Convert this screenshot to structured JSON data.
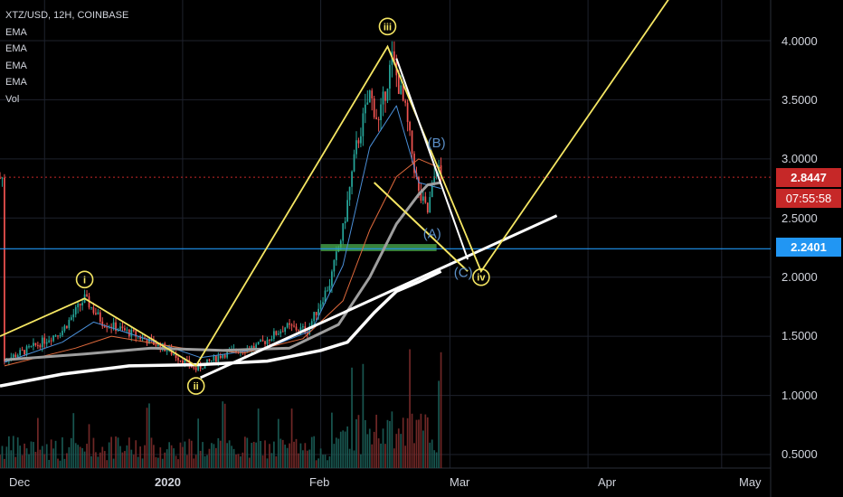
{
  "header": {
    "title": "XTZ/USD, 12H, COINBASE",
    "indicators": [
      "EMA",
      "EMA",
      "EMA",
      "EMA",
      "Vol"
    ]
  },
  "price_axis": {
    "ticks": [
      "4.0000",
      "3.5000",
      "3.0000",
      "2.5000",
      "2.0000",
      "1.5000",
      "1.0000",
      "0.5000"
    ]
  },
  "time_axis": {
    "ticks": [
      "Dec",
      "2020",
      "Feb",
      "Mar",
      "Apr",
      "May"
    ]
  },
  "badges": {
    "last_price": "2.8447",
    "countdown": "07:55:58",
    "hline_price": "2.2401"
  },
  "colors": {
    "background": "#000000",
    "up": "#26a69a",
    "down": "#ef5350",
    "wave_lines": "#f5e663",
    "trendline": "#ffffff",
    "ema_fast": "#4a8fd8",
    "ema_mid": "#e06a3c",
    "ema_slow": "#9e9e9e",
    "ema_long": "#ffffff",
    "horizontal_line": "#2196f3",
    "support_zone": "#4caf50",
    "price_badge": "#c62828",
    "hline_badge": "#2196f3"
  },
  "chart_data": {
    "type": "candlestick",
    "symbol": "XTZ/USD",
    "timeframe": "12H",
    "exchange": "COINBASE",
    "ylim": [
      0.45,
      4.3
    ],
    "xlim": [
      "2019-11-21",
      "2020-05-12"
    ],
    "last_price": 2.8447,
    "horizontal_line": 2.2401,
    "support_zone": {
      "from": 2.22,
      "to": 2.28,
      "start": "2020-02-01",
      "end": "2020-02-27"
    },
    "price_path": [
      {
        "date": "2019-11-22",
        "price": 1.3
      },
      {
        "date": "2019-11-28",
        "price": 1.4
      },
      {
        "date": "2019-12-05",
        "price": 1.55
      },
      {
        "date": "2019-12-10",
        "price": 1.82
      },
      {
        "date": "2019-12-14",
        "price": 1.62
      },
      {
        "date": "2019-12-22",
        "price": 1.5
      },
      {
        "date": "2019-12-28",
        "price": 1.4
      },
      {
        "date": "2020-01-04",
        "price": 1.22
      },
      {
        "date": "2020-01-10",
        "price": 1.35
      },
      {
        "date": "2020-01-18",
        "price": 1.42
      },
      {
        "date": "2020-01-24",
        "price": 1.58
      },
      {
        "date": "2020-01-29",
        "price": 1.55
      },
      {
        "date": "2020-02-03",
        "price": 1.95
      },
      {
        "date": "2020-02-06",
        "price": 2.4
      },
      {
        "date": "2020-02-09",
        "price": 3.1
      },
      {
        "date": "2020-02-12",
        "price": 3.55
      },
      {
        "date": "2020-02-14",
        "price": 3.3
      },
      {
        "date": "2020-02-17",
        "price": 3.85
      },
      {
        "date": "2020-02-20",
        "price": 3.4
      },
      {
        "date": "2020-02-23",
        "price": 2.7
      },
      {
        "date": "2020-02-25",
        "price": 2.55
      },
      {
        "date": "2020-02-27",
        "price": 2.95
      },
      {
        "date": "2020-02-28",
        "price": 2.84
      }
    ],
    "ema_series": [
      {
        "key": "ema_fast",
        "points": [
          [
            "2019-11-22",
            1.28
          ],
          [
            "2019-12-05",
            1.45
          ],
          [
            "2019-12-12",
            1.62
          ],
          [
            "2019-12-22",
            1.5
          ],
          [
            "2020-01-05",
            1.32
          ],
          [
            "2020-01-20",
            1.4
          ],
          [
            "2020-01-30",
            1.55
          ],
          [
            "2020-02-06",
            2.1
          ],
          [
            "2020-02-12",
            3.1
          ],
          [
            "2020-02-18",
            3.45
          ],
          [
            "2020-02-23",
            2.8
          ],
          [
            "2020-02-28",
            2.75
          ]
        ]
      },
      {
        "key": "ema_mid",
        "points": [
          [
            "2019-11-22",
            1.25
          ],
          [
            "2019-12-08",
            1.4
          ],
          [
            "2019-12-16",
            1.5
          ],
          [
            "2020-01-01",
            1.4
          ],
          [
            "2020-01-15",
            1.36
          ],
          [
            "2020-01-28",
            1.48
          ],
          [
            "2020-02-06",
            1.8
          ],
          [
            "2020-02-12",
            2.4
          ],
          [
            "2020-02-18",
            2.85
          ],
          [
            "2020-02-23",
            3.0
          ],
          [
            "2020-02-28",
            2.92
          ]
        ]
      },
      {
        "key": "ema_slow",
        "points": [
          [
            "2019-11-22",
            1.3
          ],
          [
            "2019-12-10",
            1.35
          ],
          [
            "2019-12-25",
            1.4
          ],
          [
            "2020-01-10",
            1.38
          ],
          [
            "2020-01-25",
            1.4
          ],
          [
            "2020-02-05",
            1.6
          ],
          [
            "2020-02-12",
            2.0
          ],
          [
            "2020-02-18",
            2.45
          ],
          [
            "2020-02-23",
            2.7
          ],
          [
            "2020-02-25",
            2.78
          ],
          [
            "2020-02-28",
            2.8
          ]
        ]
      },
      {
        "key": "ema_long",
        "points": [
          [
            "2019-11-21",
            1.08
          ],
          [
            "2019-12-05",
            1.18
          ],
          [
            "2019-12-20",
            1.25
          ],
          [
            "2020-01-05",
            1.26
          ],
          [
            "2020-01-20",
            1.29
          ],
          [
            "2020-02-01",
            1.38
          ],
          [
            "2020-02-07",
            1.45
          ],
          [
            "2020-02-13",
            1.7
          ],
          [
            "2020-02-18",
            1.88
          ],
          [
            "2020-02-23",
            1.96
          ],
          [
            "2020-02-28",
            2.05
          ]
        ]
      }
    ],
    "wave_path": [
      {
        "date": "2019-11-21",
        "price": 1.5
      },
      {
        "date": "2019-12-10",
        "price": 1.82,
        "label": "i"
      },
      {
        "date": "2020-01-04",
        "price": 1.25,
        "label": "ii"
      },
      {
        "date": "2020-02-16",
        "price": 3.95,
        "label": "iii"
      },
      {
        "date": "2020-03-08",
        "price": 2.05,
        "label": "iv"
      },
      {
        "date": "2020-04-20",
        "price": 4.4
      }
    ],
    "wave_lines_extra": [
      {
        "from": {
          "date": "2020-02-13",
          "price": 2.8
        },
        "to": {
          "date": "2020-03-05",
          "price": 2.05
        }
      },
      {
        "from": {
          "date": "2020-02-18",
          "price": 3.85
        },
        "to": {
          "date": "2020-03-05",
          "price": 2.15
        }
      }
    ],
    "trendline": {
      "from": {
        "date": "2020-01-05",
        "price": 1.15
      },
      "to": {
        "date": "2020-03-25",
        "price": 2.52
      }
    },
    "corrective_labels": [
      {
        "text": "(A)",
        "date": "2020-02-26",
        "price": 2.33
      },
      {
        "text": "(B)",
        "date": "2020-02-27",
        "price": 3.1
      },
      {
        "text": "(C)",
        "date": "2020-03-04",
        "price": 2.0
      }
    ],
    "wave_label_positions": [
      {
        "text": "i",
        "date": "2019-12-10",
        "price": 1.98
      },
      {
        "text": "ii",
        "date": "2020-01-04",
        "price": 1.08
      },
      {
        "text": "iii",
        "date": "2020-02-16",
        "price": 4.12
      },
      {
        "text": "iv",
        "date": "2020-03-08",
        "price": 2.0
      }
    ]
  }
}
